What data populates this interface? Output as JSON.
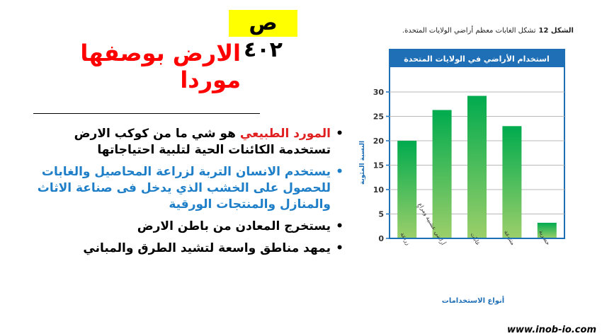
{
  "page_number": "ص ٤٠٢",
  "title": "الارض بوصفها موردا",
  "bullets": [
    {
      "highlight": "المورد الطبيعي",
      "text": " هو شي ما من كوكب الارض تستخدمة الكائنات الحية لتلبية احتياجاتها"
    },
    {
      "text": "يستخدم الانسان التربة لزراعة المحاصيل والغابات للحصول على الخشب الذي يدخل فى صناعة الاثاث والمنازل والمنتجات الورقية"
    },
    {
      "text": "يستخرج المعادن من باطن الارض"
    },
    {
      "text": "يمهد مناطق واسعة لتشيد الطرق والمباني"
    }
  ],
  "figure_caption": {
    "label": "الشكل 12",
    "text": "تشكل الغابات معظم أراضي الولايات المتحدة."
  },
  "chart_data": {
    "type": "bar",
    "title": "استخدام الأراضي في الولايات المتحدة",
    "xlabel": "أنواع الاستخدامات",
    "ylabel": "النسبة المئوية",
    "categories": [
      "زراعة",
      "أراضي عشبية ومراعٍ",
      "غابات",
      "متنوعة",
      "حضرية"
    ],
    "values": [
      20,
      26.3,
      29.2,
      23,
      3.2
    ],
    "ylim": [
      0,
      30
    ],
    "yticks": [
      "0",
      "5",
      "10",
      "15",
      "20",
      "25",
      "30"
    ],
    "grid": true,
    "colors": {
      "bar_top": "#00ab4e",
      "bar_bottom": "#9ccf6a",
      "frame": "#1f6fb7",
      "label": "#1f6fb7"
    }
  },
  "footer": "www.inob-io.com"
}
